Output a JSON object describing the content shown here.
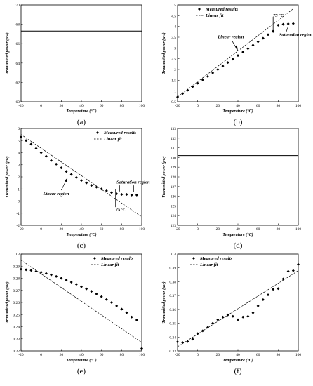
{
  "figure": {
    "xlabel": "Temperature (°C)",
    "ylabel": "Transmitted power (µw)"
  },
  "chart_data": [
    {
      "panel": "a",
      "caption": "(a)",
      "type": "line",
      "xlim": [
        -20,
        100
      ],
      "ylim": [
        60,
        70
      ],
      "xticks": [
        "-20",
        "0",
        "20",
        "40",
        "60",
        "80",
        "100"
      ],
      "yticks": [
        "60",
        "62",
        "64",
        "66",
        "68",
        "70"
      ],
      "xlabel": "Temperature (°C)",
      "ylabel": "Transmitted power (µw)",
      "series": [
        {
          "style": "solid",
          "x": [
            -20,
            100
          ],
          "values": [
            67.3,
            67.3
          ]
        }
      ]
    },
    {
      "panel": "b",
      "caption": "(b)",
      "type": "scatter",
      "xlim": [
        -20,
        100
      ],
      "ylim": [
        0.5,
        5
      ],
      "xticks": [
        "-20",
        "0",
        "20",
        "40",
        "60",
        "80",
        "100"
      ],
      "yticks": [
        "0.5",
        "1",
        "1.5",
        "2",
        "2.5",
        "3",
        "3.5",
        "4",
        "4.5",
        "5"
      ],
      "xlabel": "Temperature (°C)",
      "ylabel": "Transmitted power (µw)",
      "legend": {
        "placement": "top-left",
        "entries": [
          "Measured results",
          "Linear fit"
        ]
      },
      "series": [
        {
          "name": "Measured results",
          "style": "diamond",
          "x": [
            -20,
            -15,
            -10,
            -5,
            0,
            5,
            10,
            15,
            20,
            25,
            30,
            35,
            40,
            45,
            50,
            55,
            60,
            65,
            70,
            75,
            80,
            85,
            90,
            95
          ],
          "values": [
            0.72,
            0.88,
            1.04,
            1.2,
            1.36,
            1.52,
            1.68,
            1.84,
            2.0,
            2.16,
            2.32,
            2.48,
            2.65,
            2.81,
            2.97,
            3.13,
            3.29,
            3.45,
            3.62,
            3.78,
            4.06,
            4.1,
            4.12,
            4.13
          ]
        },
        {
          "name": "Linear fit",
          "style": "dashed",
          "x": [
            -20,
            95
          ],
          "values": [
            0.72,
            4.82
          ]
        }
      ],
      "annotations": [
        {
          "text": "75 °C",
          "x": 75,
          "y": 4.45
        },
        {
          "text": "Linear region",
          "x": 20,
          "y": 3.45
        },
        {
          "text": "Saturation region",
          "x": 81,
          "y": 3.55
        }
      ]
    },
    {
      "panel": "c",
      "caption": "(c)",
      "type": "scatter",
      "xlim": [
        -20,
        100
      ],
      "ylim": [
        -2,
        6
      ],
      "xticks": [
        "-20",
        "0",
        "20",
        "40",
        "60",
        "80",
        "100"
      ],
      "yticks": [
        "-2",
        "-1",
        "0",
        "1",
        "2",
        "3",
        "4",
        "5",
        "6"
      ],
      "xlabel": "Temperature (°C)",
      "ylabel": "Transmitted power (µw)",
      "legend": {
        "placement": "top-right",
        "entries": [
          "Measured results",
          "Linear fit"
        ]
      },
      "series": [
        {
          "name": "Measured results",
          "style": "diamond",
          "x": [
            -20,
            -15,
            -10,
            -5,
            0,
            5,
            10,
            15,
            20,
            25,
            30,
            35,
            40,
            45,
            50,
            55,
            60,
            65,
            70,
            75,
            80,
            85,
            90,
            95
          ],
          "values": [
            5.3,
            5.0,
            4.7,
            4.35,
            4.0,
            3.7,
            3.35,
            3.05,
            2.75,
            2.45,
            2.2,
            1.95,
            1.7,
            1.5,
            1.3,
            1.15,
            1.0,
            0.85,
            0.7,
            0.6,
            0.55,
            0.55,
            0.5,
            0.5
          ]
        },
        {
          "name": "Linear fit",
          "style": "dashed",
          "x": [
            -20,
            100
          ],
          "values": [
            5.5,
            -1.3
          ]
        }
      ],
      "annotations": [
        {
          "text": "Linear region",
          "x": 2,
          "y": 0.5
        },
        {
          "text": "Saturation region",
          "x": 75,
          "y": 1.45
        },
        {
          "text": "75 °C",
          "x": 74,
          "y": -0.8
        }
      ]
    },
    {
      "panel": "d",
      "caption": "(d)",
      "type": "line",
      "xlim": [
        -20,
        100
      ],
      "ylim": [
        123,
        133
      ],
      "xticks": [
        "-20",
        "0",
        "20",
        "40",
        "60",
        "80",
        "100"
      ],
      "yticks": [
        "123",
        "124",
        "125",
        "126",
        "127",
        "128",
        "129",
        "130",
        "131",
        "132",
        "133"
      ],
      "xlabel": "Temperature (°C)",
      "ylabel": "Transmitted power (µw)",
      "series": [
        {
          "style": "solid",
          "x": [
            -20,
            100
          ],
          "values": [
            130.2,
            130.2
          ]
        }
      ]
    },
    {
      "panel": "e",
      "caption": "(e)",
      "type": "scatter",
      "xlim": [
        -20,
        100
      ],
      "ylim": [
        0.22,
        0.3
      ],
      "xticks": [
        "-20",
        "0",
        "20",
        "40",
        "60",
        "80",
        "100"
      ],
      "yticks": [
        "0.22",
        "0.23",
        "0.24",
        "0.25",
        "0.26",
        "0.27",
        "0.28",
        "0.29",
        "0.3"
      ],
      "xlabel": "Temperature (°C)",
      "ylabel": "Transmitted power (µw)",
      "legend": {
        "placement": "top-right",
        "entries": [
          "Measured results",
          "Linear fit"
        ]
      },
      "series": [
        {
          "name": "Measured results",
          "style": "diamond",
          "x": [
            -20,
            -15,
            -10,
            -5,
            0,
            5,
            10,
            15,
            20,
            25,
            30,
            35,
            40,
            45,
            50,
            55,
            60,
            65,
            70,
            75,
            80,
            85,
            90,
            95,
            100
          ],
          "values": [
            0.2875,
            0.287,
            0.2865,
            0.2858,
            0.285,
            0.284,
            0.2828,
            0.2815,
            0.28,
            0.2785,
            0.2768,
            0.275,
            0.273,
            0.2712,
            0.2692,
            0.267,
            0.2648,
            0.2625,
            0.26,
            0.2572,
            0.2545,
            0.2515,
            0.248,
            0.2455,
            0.222
          ]
        },
        {
          "name": "Linear fit",
          "style": "dashed",
          "x": [
            -20,
            100
          ],
          "values": [
            0.295,
            0.227
          ]
        }
      ]
    },
    {
      "panel": "f",
      "caption": "(f)",
      "type": "scatter",
      "xlim": [
        -20,
        100
      ],
      "ylim": [
        0.33,
        0.4
      ],
      "xticks": [
        "-20",
        "0",
        "20",
        "40",
        "60",
        "80",
        "100"
      ],
      "yticks": [
        "0.33",
        "0.34",
        "0.35",
        "0.36",
        "0.37",
        "0.38",
        "0.39",
        "0.4"
      ],
      "xlabel": "Temperature (°C)",
      "ylabel": "Transmitted power (µw)",
      "legend": {
        "placement": "top-left",
        "entries": [
          "Measured results",
          "Linear fit"
        ]
      },
      "series": [
        {
          "name": "Measured results",
          "style": "diamond",
          "x": [
            -20,
            -15,
            -10,
            -5,
            0,
            5,
            10,
            15,
            20,
            25,
            30,
            35,
            40,
            45,
            50,
            55,
            60,
            65,
            70,
            75,
            80,
            85,
            90,
            95,
            100
          ],
          "values": [
            0.3365,
            0.336,
            0.3368,
            0.3385,
            0.3425,
            0.3445,
            0.347,
            0.35,
            0.3525,
            0.3545,
            0.356,
            0.355,
            0.3525,
            0.3545,
            0.355,
            0.3575,
            0.3625,
            0.367,
            0.3705,
            0.3745,
            0.375,
            0.382,
            0.3875,
            0.388,
            0.3925
          ]
        },
        {
          "name": "Linear fit",
          "style": "dashed",
          "x": [
            -20,
            100
          ],
          "values": [
            0.333,
            0.388
          ]
        }
      ]
    }
  ]
}
